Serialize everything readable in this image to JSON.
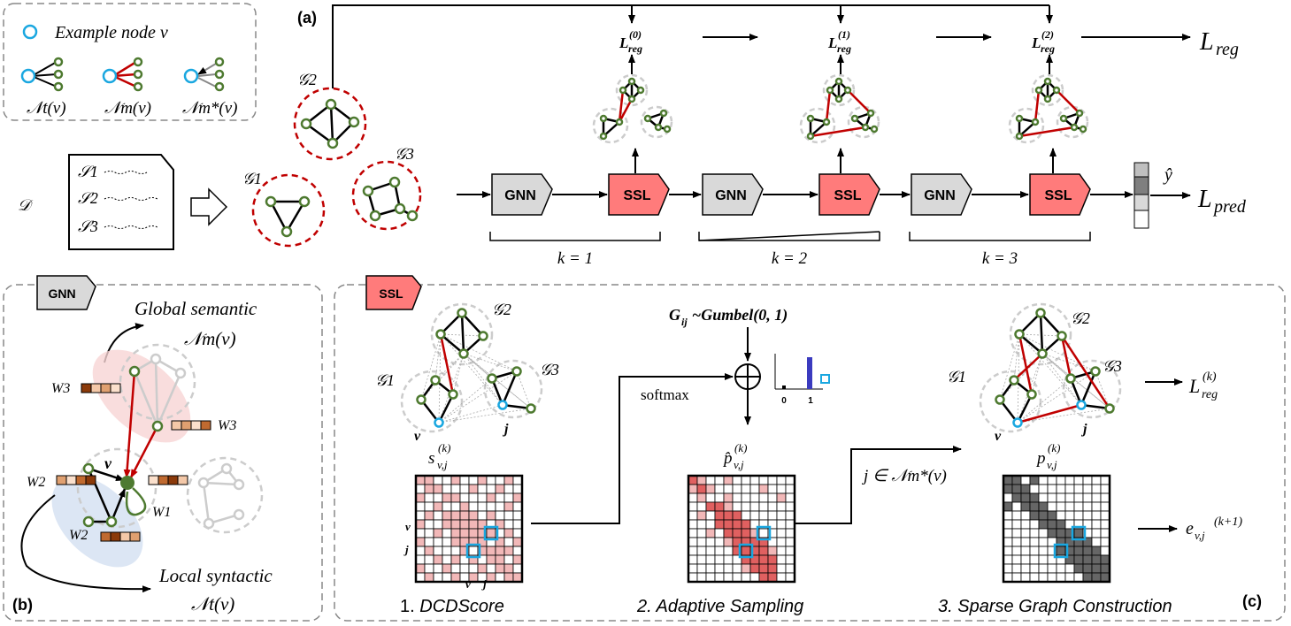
{
  "legend": {
    "example_node": "Example node v",
    "labels": [
      "𝒩t(v)",
      "𝒩m(v)",
      "𝒩m*(v)"
    ]
  },
  "panel_labels": {
    "a": "(a)",
    "b": "(b)",
    "c": "(c)"
  },
  "dataset": {
    "name": "𝒟",
    "sentences": [
      "𝒮1",
      "𝒮2",
      "𝒮3"
    ]
  },
  "graphs": [
    "𝒢1",
    "𝒢2",
    "𝒢3"
  ],
  "pipeline": {
    "gnn_label": "GNN",
    "ssl_label": "SSL",
    "k_labels": [
      "k = 1",
      "k = 2",
      "k = 3"
    ],
    "lreg_terms": [
      "L(0)reg",
      "L(1)reg",
      "L(2)reg"
    ],
    "lreg_total": "Lreg",
    "yhat": "ŷ",
    "lpred": "Lpred"
  },
  "panel_b": {
    "badge": "GNN",
    "global_title": "Global semantic",
    "global_sub": "𝒩m(v)",
    "local_title": "Local syntactic",
    "local_sub": "𝒩t(v)",
    "v": "v",
    "weights": [
      "W3",
      "W3",
      "W2",
      "W1",
      "W2"
    ]
  },
  "panel_c": {
    "badge": "SSL",
    "gumbel": "Gij~Gumbel(0, 1)",
    "softmax": "softmax",
    "axis_ticks": [
      "0",
      "1"
    ],
    "score_label": "s(k)v,j",
    "sample_label": "p̂(k)v,j",
    "sparse_label": "p(k)v,j",
    "condition": "j ∈ 𝒩m*(v)",
    "lreg_k": "L(k)reg",
    "edge_next": "ev,j(k+1)",
    "node_v": "v",
    "node_j": "j",
    "steps": [
      "1. DCDScore",
      "2. Adaptive Sampling",
      "3. Sparse Graph Construction"
    ]
  },
  "colors": {
    "node_green": "#4e7a30",
    "node_blue": "#1aa7e0",
    "edge_red": "#c00000",
    "ssl_fill": "#ff7b7b",
    "gnn_fill": "#d9d9d9",
    "dashed_red": "#c00000",
    "matrix_pink": "#f2b8b8",
    "matrix_red": "#e06060",
    "matrix_gray": "#666666"
  },
  "matrices": {
    "score": [
      [
        1,
        1,
        0,
        0,
        1,
        0,
        0,
        1,
        0,
        0,
        1,
        0
      ],
      [
        0,
        1,
        1,
        0,
        0,
        0,
        1,
        0,
        0,
        1,
        0,
        0
      ],
      [
        1,
        0,
        0,
        1,
        1,
        0,
        0,
        0,
        1,
        0,
        0,
        1
      ],
      [
        0,
        0,
        1,
        0,
        0,
        1,
        0,
        0,
        0,
        0,
        1,
        0
      ],
      [
        0,
        1,
        0,
        1,
        1,
        1,
        1,
        0,
        1,
        0,
        0,
        0
      ],
      [
        1,
        0,
        0,
        1,
        1,
        1,
        1,
        1,
        0,
        1,
        0,
        0
      ],
      [
        0,
        0,
        1,
        0,
        1,
        1,
        1,
        1,
        1,
        0,
        1,
        0
      ],
      [
        1,
        0,
        0,
        0,
        1,
        1,
        1,
        1,
        0,
        1,
        0,
        1
      ],
      [
        0,
        1,
        0,
        0,
        0,
        1,
        0,
        1,
        1,
        1,
        1,
        0
      ],
      [
        0,
        0,
        1,
        0,
        1,
        0,
        1,
        0,
        1,
        1,
        0,
        1
      ],
      [
        1,
        0,
        0,
        1,
        0,
        0,
        0,
        1,
        0,
        1,
        1,
        0
      ],
      [
        0,
        1,
        0,
        0,
        1,
        0,
        1,
        0,
        1,
        0,
        1,
        1
      ]
    ],
    "sample": [
      [
        2,
        1,
        0,
        0,
        1,
        0,
        0,
        0,
        0,
        0,
        0,
        0
      ],
      [
        1,
        2,
        1,
        0,
        0,
        0,
        0,
        0,
        1,
        0,
        0,
        0
      ],
      [
        0,
        1,
        0,
        0,
        1,
        0,
        0,
        0,
        0,
        0,
        1,
        0
      ],
      [
        0,
        0,
        2,
        2,
        1,
        0,
        0,
        0,
        0,
        0,
        0,
        0
      ],
      [
        0,
        1,
        0,
        2,
        2,
        2,
        0,
        0,
        0,
        0,
        0,
        0
      ],
      [
        0,
        0,
        0,
        2,
        2,
        2,
        2,
        0,
        0,
        0,
        0,
        0
      ],
      [
        0,
        0,
        1,
        0,
        2,
        2,
        2,
        1,
        0,
        0,
        0,
        0
      ],
      [
        0,
        0,
        0,
        0,
        1,
        2,
        2,
        2,
        2,
        0,
        0,
        0
      ],
      [
        0,
        0,
        0,
        0,
        0,
        2,
        2,
        2,
        2,
        1,
        0,
        0
      ],
      [
        0,
        0,
        0,
        0,
        0,
        0,
        2,
        2,
        2,
        2,
        0,
        0
      ],
      [
        0,
        0,
        0,
        0,
        0,
        0,
        1,
        2,
        2,
        2,
        0,
        0
      ],
      [
        0,
        0,
        0,
        0,
        0,
        0,
        0,
        0,
        2,
        2,
        0,
        0
      ]
    ],
    "sparse": [
      [
        1,
        1,
        0,
        1,
        0,
        0,
        0,
        0,
        0,
        0,
        0,
        0
      ],
      [
        1,
        1,
        1,
        0,
        0,
        0,
        0,
        0,
        0,
        0,
        0,
        0
      ],
      [
        0,
        1,
        1,
        1,
        0,
        0,
        0,
        0,
        0,
        0,
        0,
        0
      ],
      [
        1,
        0,
        1,
        1,
        1,
        0,
        0,
        0,
        0,
        0,
        0,
        0
      ],
      [
        0,
        0,
        0,
        1,
        1,
        1,
        0,
        0,
        0,
        0,
        0,
        0
      ],
      [
        0,
        0,
        0,
        0,
        1,
        1,
        1,
        0,
        0,
        0,
        0,
        0
      ],
      [
        0,
        0,
        0,
        0,
        0,
        1,
        1,
        1,
        1,
        0,
        0,
        0
      ],
      [
        0,
        0,
        0,
        0,
        0,
        0,
        1,
        1,
        1,
        1,
        0,
        0
      ],
      [
        0,
        0,
        0,
        0,
        0,
        0,
        1,
        1,
        1,
        1,
        1,
        0
      ],
      [
        0,
        0,
        0,
        0,
        0,
        0,
        0,
        1,
        1,
        1,
        1,
        1
      ],
      [
        0,
        0,
        0,
        0,
        0,
        0,
        0,
        0,
        1,
        1,
        1,
        1
      ],
      [
        0,
        0,
        0,
        0,
        0,
        0,
        0,
        0,
        0,
        1,
        1,
        1
      ]
    ],
    "highlight_score": [
      [
        6,
        8
      ],
      [
        8,
        6
      ]
    ],
    "highlight_sample": [
      [
        6,
        8
      ],
      [
        8,
        6
      ]
    ],
    "highlight_sparse": [
      [
        6,
        8
      ],
      [
        8,
        6
      ]
    ]
  }
}
